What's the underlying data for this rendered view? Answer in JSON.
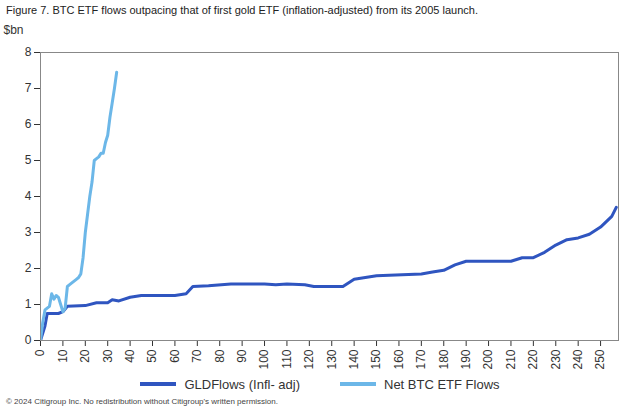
{
  "chart_data": {
    "type": "line",
    "title": "Figure 7. BTC ETF flows outpacing that of first gold ETF (inflation-adjusted) from its 2005 launch.",
    "y_label": "$bn",
    "footer": "© 2024 Citigroup Inc. No redistribution without Citigroup's written permission.",
    "xlim": [
      0,
      258
    ],
    "xticks": [
      0,
      10,
      20,
      30,
      40,
      50,
      60,
      70,
      80,
      90,
      100,
      110,
      120,
      130,
      140,
      150,
      160,
      170,
      180,
      190,
      200,
      210,
      220,
      230,
      240,
      250
    ],
    "ylim": [
      0,
      8
    ],
    "yticks": [
      0,
      1,
      2,
      3,
      4,
      5,
      6,
      7,
      8
    ],
    "grid": false,
    "legend": "bottom",
    "series": [
      {
        "name": "GLDFlows (Infl- adj)",
        "color": "#2f55c0",
        "x": [
          0,
          2,
          3,
          8,
          10,
          12,
          20,
          25,
          30,
          32,
          35,
          40,
          45,
          60,
          65,
          68,
          75,
          85,
          100,
          105,
          110,
          118,
          122,
          135,
          140,
          145,
          150,
          170,
          175,
          180,
          185,
          190,
          210,
          215,
          220,
          225,
          230,
          235,
          240,
          245,
          250,
          255,
          257
        ],
        "values": [
          0,
          0.4,
          0.75,
          0.75,
          0.8,
          0.95,
          0.97,
          1.05,
          1.05,
          1.13,
          1.1,
          1.2,
          1.25,
          1.25,
          1.3,
          1.5,
          1.52,
          1.57,
          1.57,
          1.55,
          1.57,
          1.55,
          1.5,
          1.5,
          1.7,
          1.75,
          1.8,
          1.85,
          1.9,
          1.95,
          2.1,
          2.2,
          2.2,
          2.3,
          2.3,
          2.45,
          2.65,
          2.8,
          2.85,
          2.95,
          3.15,
          3.45,
          3.7
        ]
      },
      {
        "name": "Net BTC ETF Flows",
        "color": "#6cb7e8",
        "x": [
          0,
          1,
          2,
          3,
          4,
          5,
          6,
          7,
          8,
          9,
          10,
          11,
          12,
          13,
          14,
          15,
          16,
          17,
          18,
          19,
          20,
          21,
          22,
          23,
          24,
          25,
          26,
          27,
          28,
          29,
          30,
          31,
          32,
          33,
          34
        ],
        "values": [
          0,
          0.5,
          0.85,
          0.9,
          0.95,
          1.3,
          1.15,
          1.25,
          1.2,
          1.0,
          0.8,
          0.9,
          1.5,
          1.55,
          1.6,
          1.65,
          1.7,
          1.75,
          1.85,
          2.3,
          3.0,
          3.5,
          4.0,
          4.4,
          5.0,
          5.05,
          5.1,
          5.2,
          5.2,
          5.5,
          5.7,
          6.2,
          6.6,
          7.0,
          7.45
        ]
      }
    ]
  }
}
